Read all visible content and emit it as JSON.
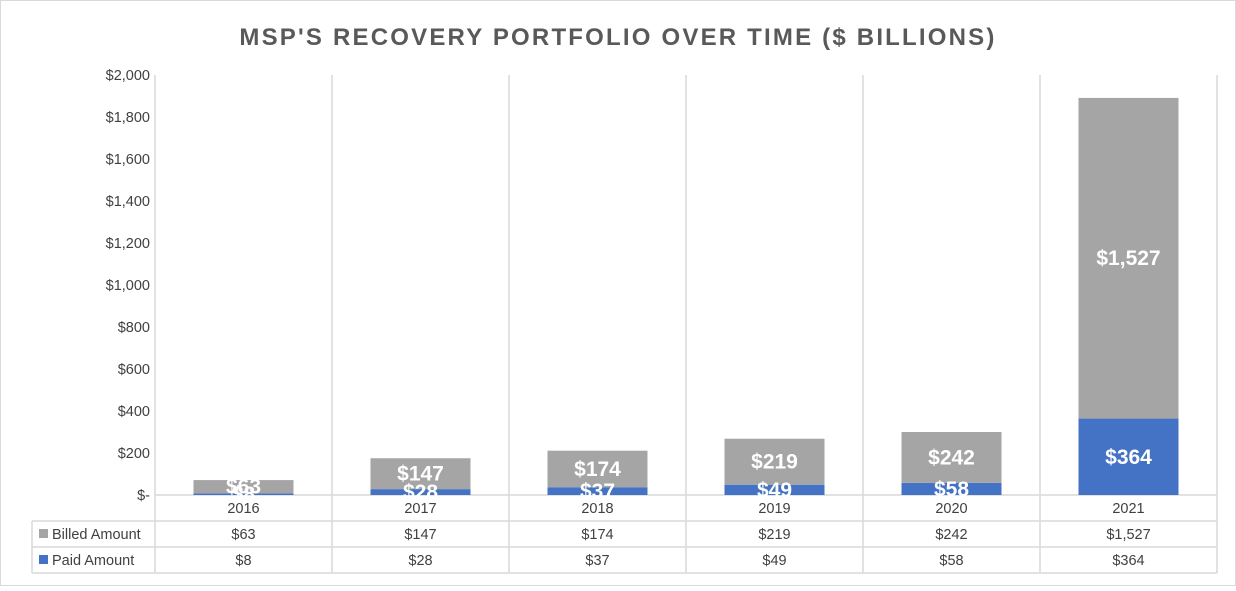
{
  "chart_data": {
    "type": "bar",
    "stacked": true,
    "title": "MSP'S RECOVERY PORTFOLIO OVER TIME ($ BILLIONS)",
    "categories": [
      "2016",
      "2017",
      "2018",
      "2019",
      "2020",
      "2021"
    ],
    "series": [
      {
        "name": "Paid Amount",
        "color": "#4472C4",
        "values": [
          8,
          28,
          37,
          49,
          58,
          364
        ],
        "labels": [
          "$8",
          "$28",
          "$37",
          "$49",
          "$58",
          "$364"
        ]
      },
      {
        "name": "Billed Amount",
        "color": "#A5A5A5",
        "values": [
          63,
          147,
          174,
          219,
          242,
          1527
        ],
        "labels": [
          "$63",
          "$147",
          "$174",
          "$219",
          "$242",
          "$1,527"
        ]
      }
    ],
    "ylim": [
      0,
      2000
    ],
    "y_ticks": [
      0,
      200,
      400,
      600,
      800,
      1000,
      1200,
      1400,
      1600,
      1800,
      2000
    ],
    "y_tick_labels": [
      "$-",
      "$200",
      "$400",
      "$600",
      "$800",
      "$1,000",
      "$1,200",
      "$1,400",
      "$1,600",
      "$1,800",
      "$2,000"
    ],
    "grid": "vertical",
    "legend": "data-table",
    "data_table": {
      "rows": [
        {
          "label": "Billed Amount",
          "color": "#A5A5A5",
          "cells": [
            "$63",
            "$147",
            "$174",
            "$219",
            "$242",
            "$1,527"
          ]
        },
        {
          "label": "Paid Amount",
          "color": "#4472C4",
          "cells": [
            "$8",
            "$28",
            "$37",
            "$49",
            "$58",
            "$364"
          ]
        }
      ]
    }
  }
}
